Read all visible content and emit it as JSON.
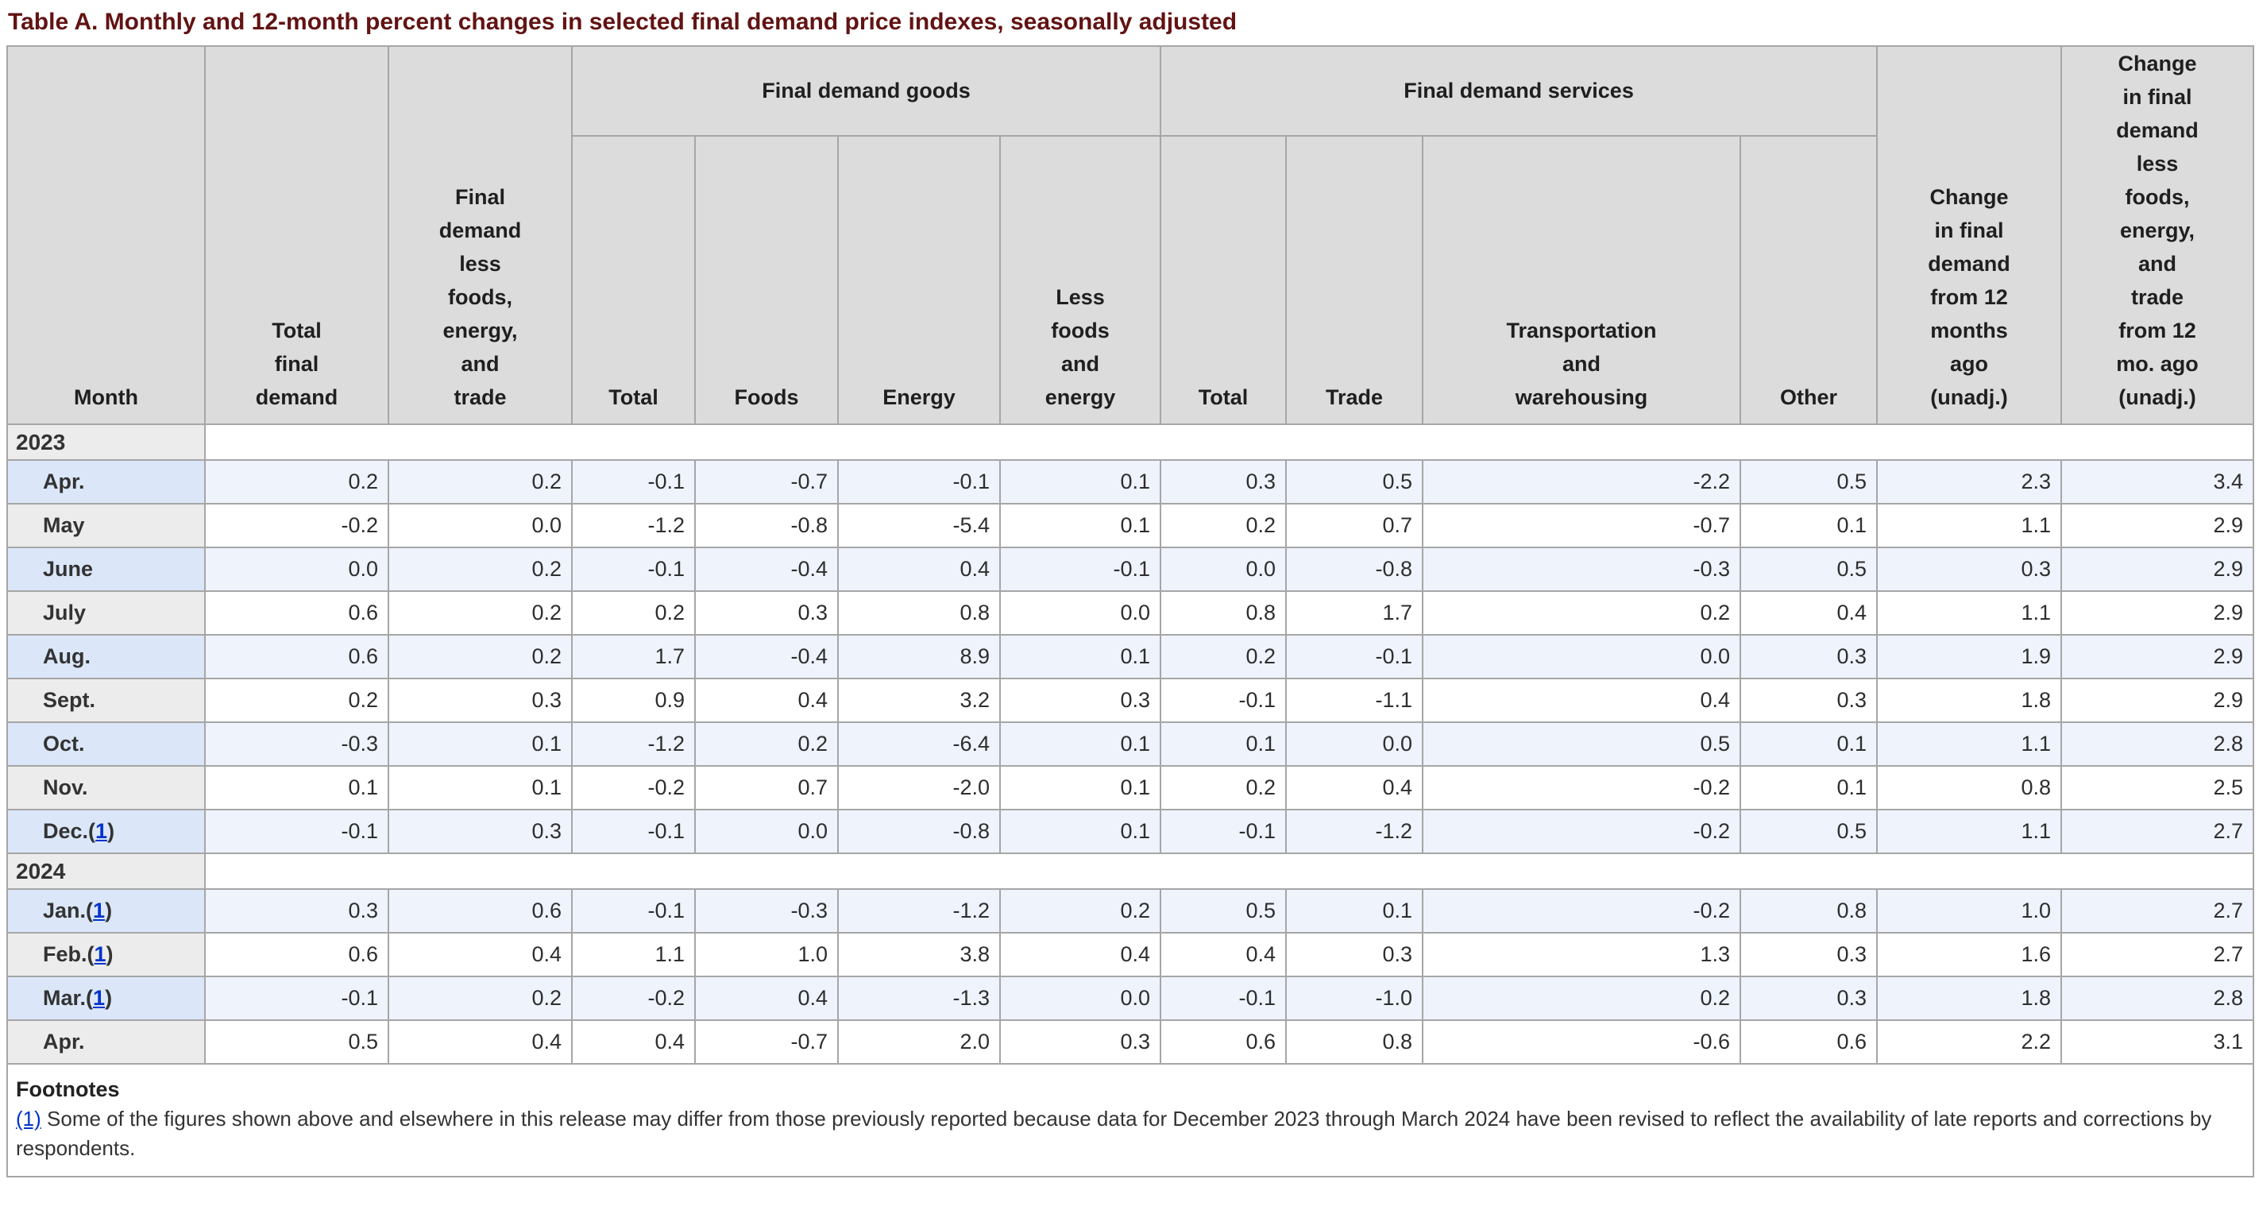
{
  "title": "Table A. Monthly and 12-month percent changes in selected final demand price indexes, seasonally adjusted",
  "colors": {
    "title_text": "#621313",
    "header_bg": "#dcdcdc",
    "shaded_row_month_bg": "#dbe7f9",
    "shaded_row_data_bg": "#eef3fc",
    "plain_row_month_bg": "#ececec",
    "border": "#a6a6a6",
    "link": "#0033cc"
  },
  "table": {
    "headers": {
      "month": "Month",
      "total_final_demand": "Total\nfinal\ndemand",
      "fd_less_foods_energy_trade": "Final\ndemand\nless\nfoods,\nenergy,\nand\ntrade",
      "goods_group": "Final demand goods",
      "goods_total": "Total",
      "goods_foods": "Foods",
      "goods_energy": "Energy",
      "goods_less_foods_energy": "Less\nfoods\nand\nenergy",
      "services_group": "Final demand services",
      "services_total": "Total",
      "services_trade": "Trade",
      "services_transportation": "Transportation\nand\nwarehousing",
      "services_other": "Other",
      "change_12mo": "Change\nin final\ndemand\nfrom 12\nmonths\nago\n(unadj.)",
      "change_less_12mo": "Change\nin final\ndemand\nless\nfoods,\nenergy,\nand\ntrade\nfrom 12\nmo. ago\n(unadj.)"
    },
    "sections": [
      {
        "year": "2023",
        "rows": [
          {
            "month": "Apr.",
            "values": [
              "0.2",
              "0.2",
              "-0.1",
              "-0.7",
              "-0.1",
              "0.1",
              "0.3",
              "0.5",
              "-2.2",
              "0.5",
              "2.3",
              "3.4"
            ]
          },
          {
            "month": "May",
            "values": [
              "-0.2",
              "0.0",
              "-1.2",
              "-0.8",
              "-5.4",
              "0.1",
              "0.2",
              "0.7",
              "-0.7",
              "0.1",
              "1.1",
              "2.9"
            ]
          },
          {
            "month": "June",
            "values": [
              "0.0",
              "0.2",
              "-0.1",
              "-0.4",
              "0.4",
              "-0.1",
              "0.0",
              "-0.8",
              "-0.3",
              "0.5",
              "0.3",
              "2.9"
            ]
          },
          {
            "month": "July",
            "values": [
              "0.6",
              "0.2",
              "0.2",
              "0.3",
              "0.8",
              "0.0",
              "0.8",
              "1.7",
              "0.2",
              "0.4",
              "1.1",
              "2.9"
            ]
          },
          {
            "month": "Aug.",
            "values": [
              "0.6",
              "0.2",
              "1.7",
              "-0.4",
              "8.9",
              "0.1",
              "0.2",
              "-0.1",
              "0.0",
              "0.3",
              "1.9",
              "2.9"
            ]
          },
          {
            "month": "Sept.",
            "values": [
              "0.2",
              "0.3",
              "0.9",
              "0.4",
              "3.2",
              "0.3",
              "-0.1",
              "-1.1",
              "0.4",
              "0.3",
              "1.8",
              "2.9"
            ]
          },
          {
            "month": "Oct.",
            "values": [
              "-0.3",
              "0.1",
              "-1.2",
              "0.2",
              "-6.4",
              "0.1",
              "0.1",
              "0.0",
              "0.5",
              "0.1",
              "1.1",
              "2.8"
            ]
          },
          {
            "month": "Nov.",
            "values": [
              "0.1",
              "0.1",
              "-0.2",
              "0.7",
              "-2.0",
              "0.1",
              "0.2",
              "0.4",
              "-0.2",
              "0.1",
              "0.8",
              "2.5"
            ]
          },
          {
            "month": "Dec.",
            "footnote_ref": "1",
            "values": [
              "-0.1",
              "0.3",
              "-0.1",
              "0.0",
              "-0.8",
              "0.1",
              "-0.1",
              "-1.2",
              "-0.2",
              "0.5",
              "1.1",
              "2.7"
            ]
          }
        ]
      },
      {
        "year": "2024",
        "rows": [
          {
            "month": "Jan.",
            "footnote_ref": "1",
            "values": [
              "0.3",
              "0.6",
              "-0.1",
              "-0.3",
              "-1.2",
              "0.2",
              "0.5",
              "0.1",
              "-0.2",
              "0.8",
              "1.0",
              "2.7"
            ]
          },
          {
            "month": "Feb.",
            "footnote_ref": "1",
            "values": [
              "0.6",
              "0.4",
              "1.1",
              "1.0",
              "3.8",
              "0.4",
              "0.4",
              "0.3",
              "1.3",
              "0.3",
              "1.6",
              "2.7"
            ]
          },
          {
            "month": "Mar.",
            "footnote_ref": "1",
            "values": [
              "-0.1",
              "0.2",
              "-0.2",
              "0.4",
              "-1.3",
              "0.0",
              "-0.1",
              "-1.0",
              "0.2",
              "0.3",
              "1.8",
              "2.8"
            ]
          },
          {
            "month": "Apr.",
            "values": [
              "0.5",
              "0.4",
              "0.4",
              "-0.7",
              "2.0",
              "0.3",
              "0.6",
              "0.8",
              "-0.6",
              "0.6",
              "2.2",
              "3.1"
            ]
          }
        ]
      }
    ]
  },
  "footnotes": {
    "heading": "Footnotes",
    "items": [
      {
        "marker": "(1)",
        "text": "Some of the figures shown above and elsewhere in this release may differ from those previously reported because data for December 2023 through March 2024 have been revised to reflect the availability of late reports and corrections by respondents."
      }
    ]
  }
}
